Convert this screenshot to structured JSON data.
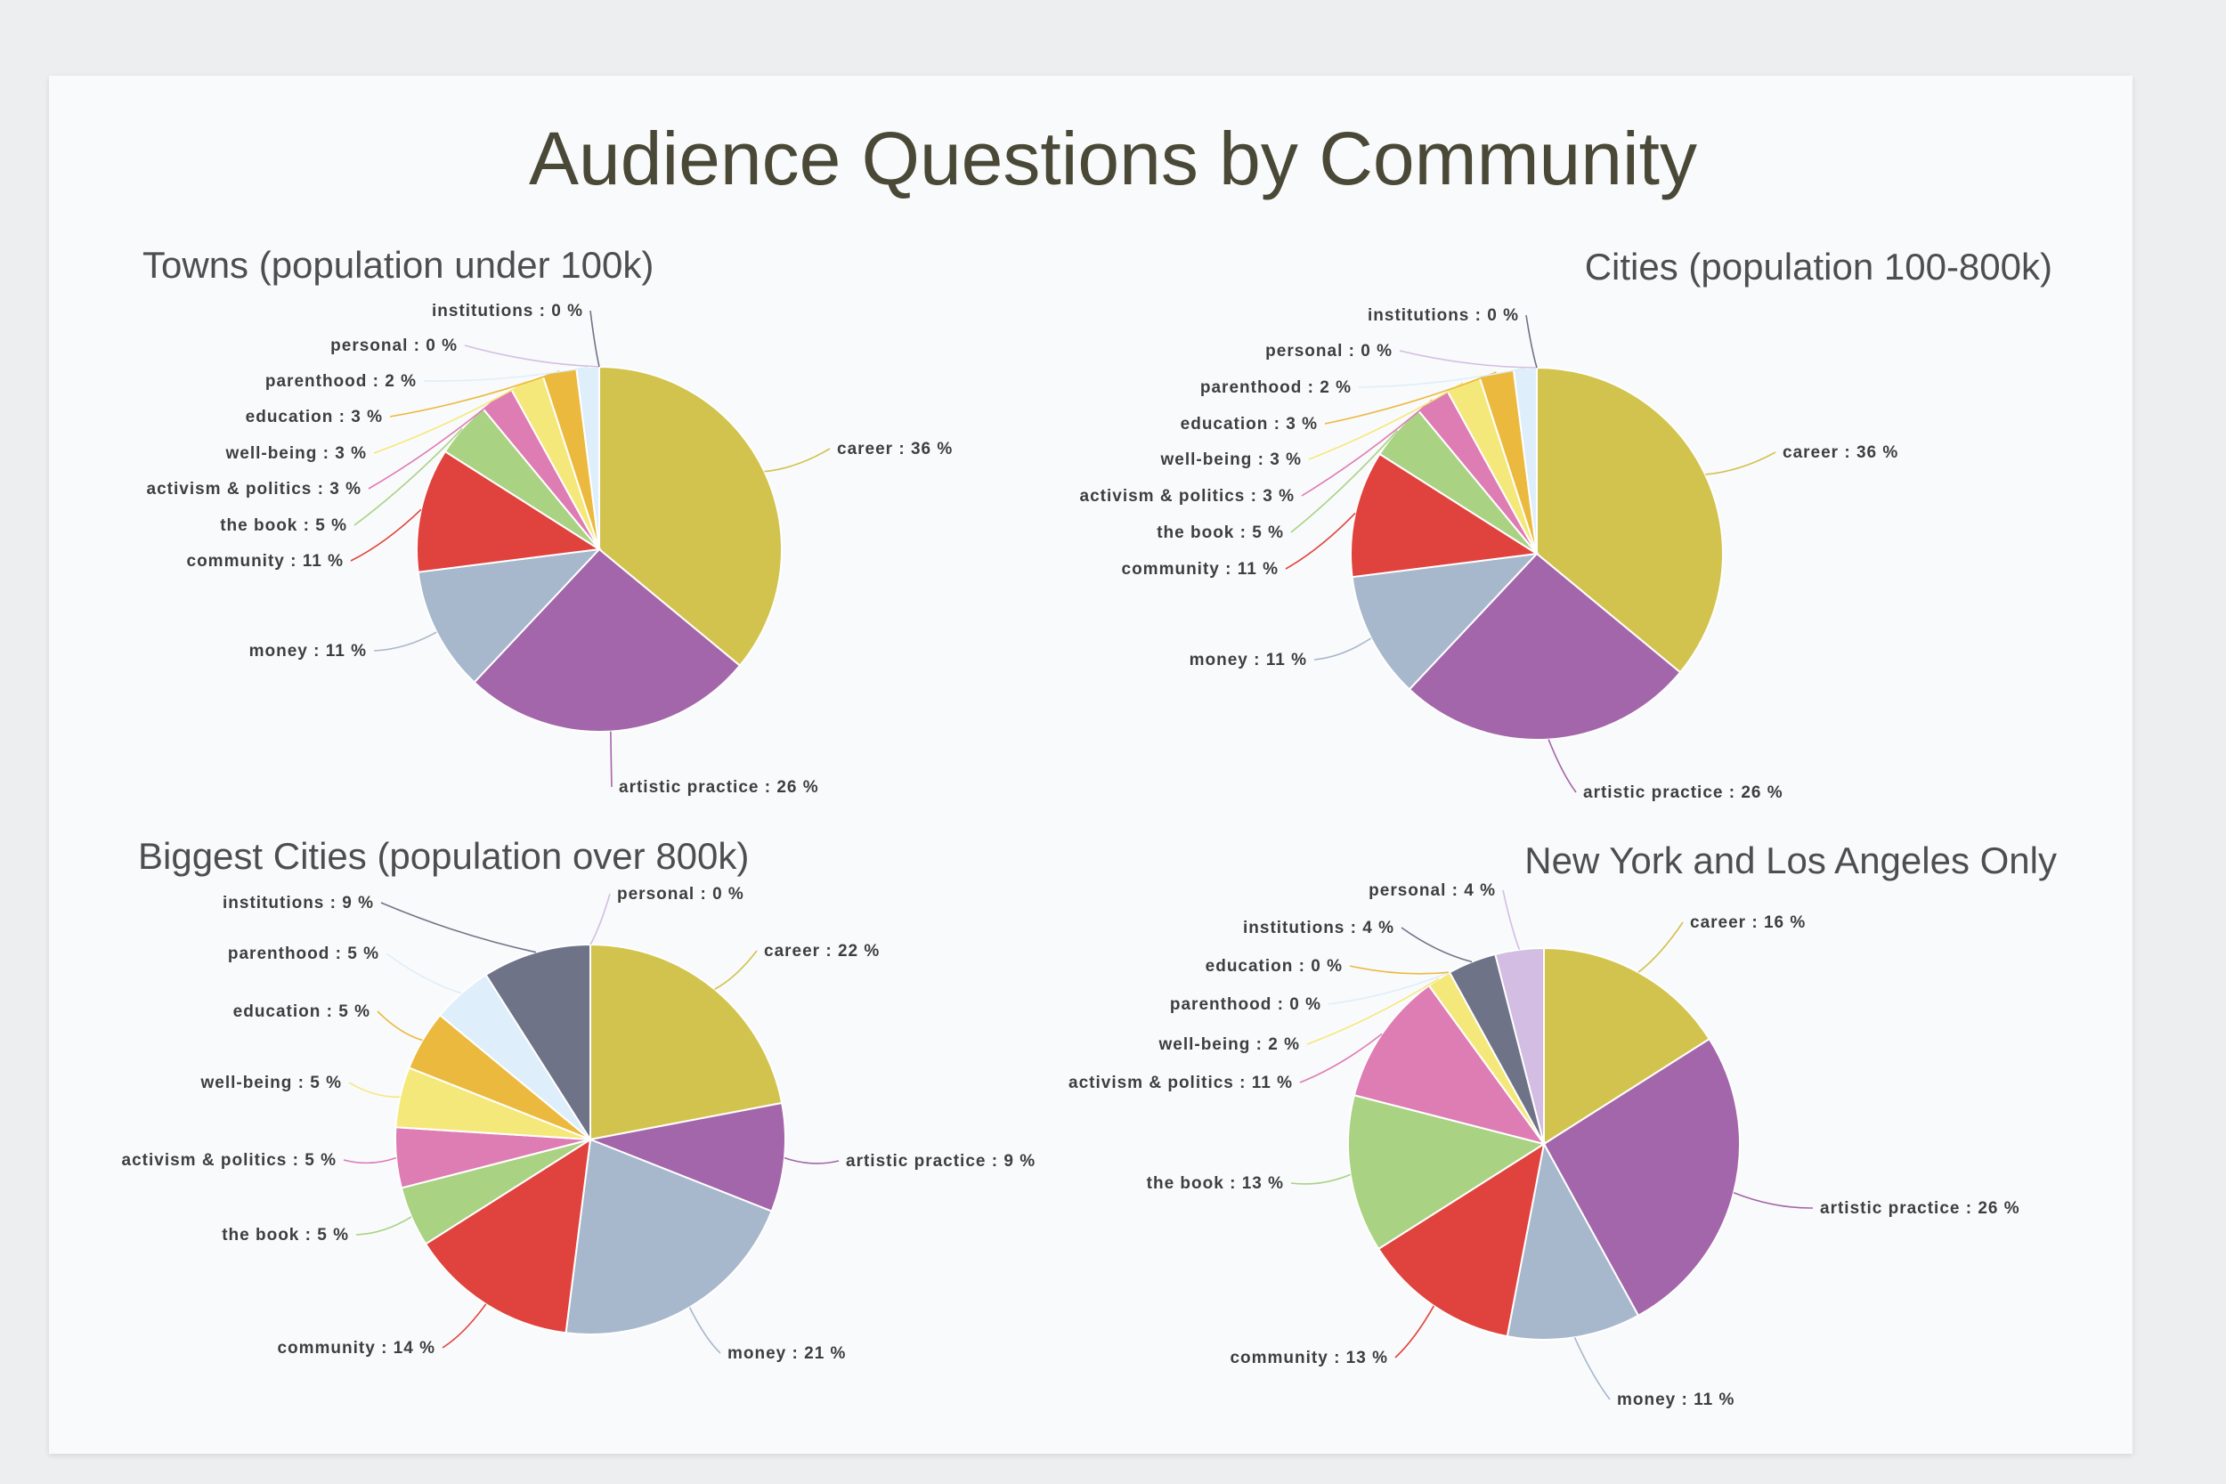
{
  "title": "Audience Questions by Community",
  "colors": {
    "career": "#d2c34f",
    "artistic practice": "#a466aa",
    "money": "#a7b8cc",
    "community": "#e0433d",
    "the book": "#a9d283",
    "activism & politics": "#de7cb4",
    "well-being": "#f5e87a",
    "education": "#ecb93f",
    "parenthood": "#deeefa",
    "personal": "#d3bde3",
    "institutions": "#6f7388"
  },
  "chart_data": [
    {
      "type": "pie",
      "title": "Towns (population under 100k)",
      "slices": [
        {
          "label": "career",
          "value": 36,
          "text": "career : 36 %"
        },
        {
          "label": "artistic practice",
          "value": 26,
          "text": "artistic practice : 26 %"
        },
        {
          "label": "money",
          "value": 11,
          "text": "money : 11 %"
        },
        {
          "label": "community",
          "value": 11,
          "text": "community : 11 %"
        },
        {
          "label": "the book",
          "value": 5,
          "text": "the book : 5 %"
        },
        {
          "label": "activism & politics",
          "value": 3,
          "text": "activism & politics : 3 %"
        },
        {
          "label": "well-being",
          "value": 3,
          "text": "well-being : 3 %"
        },
        {
          "label": "education",
          "value": 3,
          "text": "education : 3 %"
        },
        {
          "label": "parenthood",
          "value": 2,
          "text": "parenthood : 2 %"
        },
        {
          "label": "personal",
          "value": 0,
          "text": "personal : 0 %"
        },
        {
          "label": "institutions",
          "value": 0,
          "text": "institutions : 0 %"
        }
      ]
    },
    {
      "type": "pie",
      "title": "Cities (population 100-800k)",
      "slices": [
        {
          "label": "career",
          "value": 36,
          "text": "career : 36 %"
        },
        {
          "label": "artistic practice",
          "value": 26,
          "text": "artistic practice : 26 %"
        },
        {
          "label": "money",
          "value": 11,
          "text": "money : 11 %"
        },
        {
          "label": "community",
          "value": 11,
          "text": "community : 11 %"
        },
        {
          "label": "the book",
          "value": 5,
          "text": "the book : 5 %"
        },
        {
          "label": "activism & politics",
          "value": 3,
          "text": "activism & politics : 3 %"
        },
        {
          "label": "well-being",
          "value": 3,
          "text": "well-being : 3 %"
        },
        {
          "label": "education",
          "value": 3,
          "text": "education : 3 %"
        },
        {
          "label": "parenthood",
          "value": 2,
          "text": "parenthood : 2 %"
        },
        {
          "label": "personal",
          "value": 0,
          "text": "personal : 0 %"
        },
        {
          "label": "institutions",
          "value": 0,
          "text": "institutions : 0 %"
        }
      ]
    },
    {
      "type": "pie",
      "title": "Biggest Cities (population over 800k)",
      "slices": [
        {
          "label": "career",
          "value": 22,
          "text": "career : 22 %"
        },
        {
          "label": "artistic practice",
          "value": 9,
          "text": "artistic practice : 9 %"
        },
        {
          "label": "money",
          "value": 21,
          "text": "money : 21 %"
        },
        {
          "label": "community",
          "value": 14,
          "text": "community : 14 %"
        },
        {
          "label": "the book",
          "value": 5,
          "text": "the book : 5 %"
        },
        {
          "label": "activism & politics",
          "value": 5,
          "text": "activism & politics : 5 %"
        },
        {
          "label": "well-being",
          "value": 5,
          "text": "well-being : 5 %"
        },
        {
          "label": "education",
          "value": 5,
          "text": "education : 5 %"
        },
        {
          "label": "parenthood",
          "value": 5,
          "text": "parenthood : 5 %"
        },
        {
          "label": "institutions",
          "value": 9,
          "text": "institutions : 9 %"
        },
        {
          "label": "personal",
          "value": 0,
          "text": "personal : 0 %"
        }
      ]
    },
    {
      "type": "pie",
      "title": "New York and Los Angeles Only",
      "slices": [
        {
          "label": "career",
          "value": 16,
          "text": "career : 16 %"
        },
        {
          "label": "artistic practice",
          "value": 26,
          "text": "artistic practice : 26 %"
        },
        {
          "label": "money",
          "value": 11,
          "text": "money : 11 %"
        },
        {
          "label": "community",
          "value": 13,
          "text": "community : 13 %"
        },
        {
          "label": "the book",
          "value": 13,
          "text": "the book : 13 %"
        },
        {
          "label": "activism & politics",
          "value": 11,
          "text": "activism & politics : 11 %"
        },
        {
          "label": "well-being",
          "value": 2,
          "text": "well-being : 2 %"
        },
        {
          "label": "parenthood",
          "value": 0,
          "text": "parenthood : 0 %"
        },
        {
          "label": "education",
          "value": 0,
          "text": "education : 0 %"
        },
        {
          "label": "institutions",
          "value": 4,
          "text": "institutions : 4 %"
        },
        {
          "label": "personal",
          "value": 4,
          "text": "personal : 4 %"
        }
      ]
    }
  ]
}
